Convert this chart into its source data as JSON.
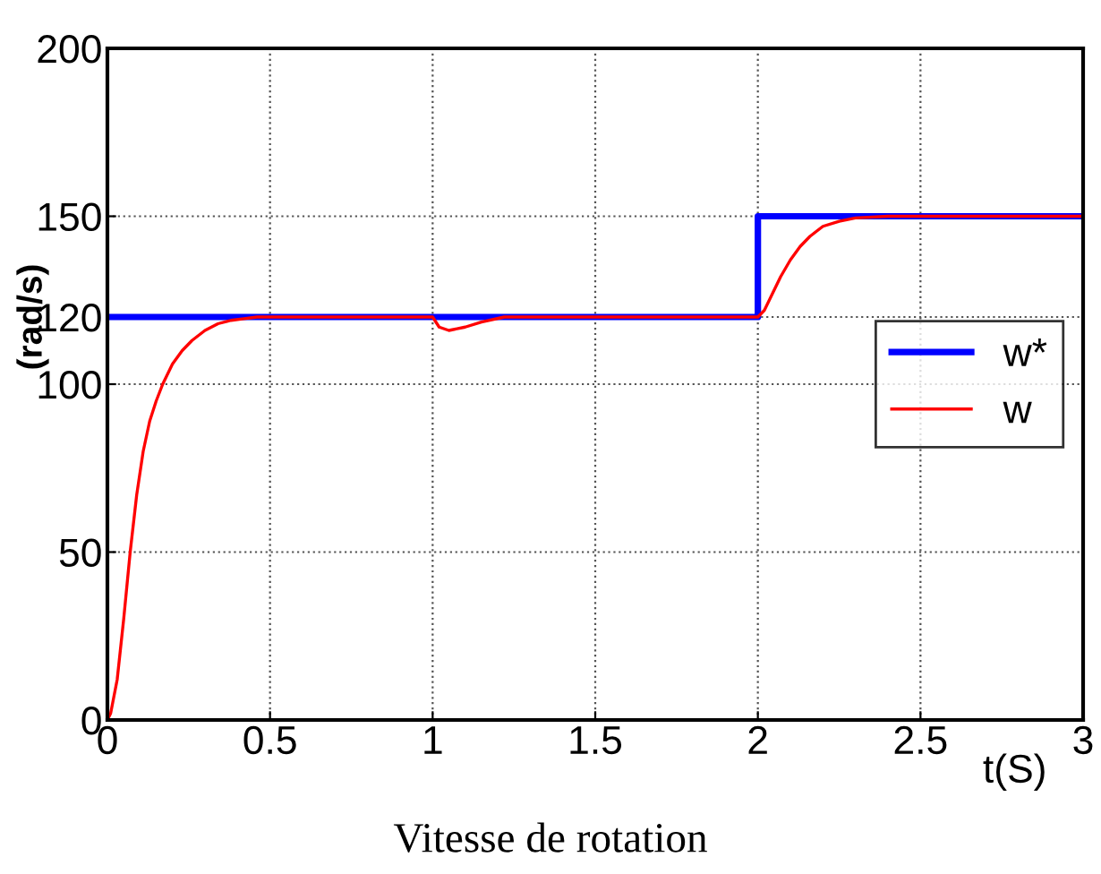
{
  "chart_data": {
    "type": "line",
    "title": "Vitesse de rotation",
    "xlabel": "t(S)",
    "ylabel": "(rad/s)",
    "xlim": [
      0,
      3
    ],
    "xticks": [
      0,
      0.5,
      1,
      1.5,
      2,
      2.5,
      3
    ],
    "ylim": [
      0,
      200
    ],
    "yticks": [
      0,
      50,
      100,
      120,
      150,
      200
    ],
    "grid": true,
    "legend": "right",
    "marker": "none",
    "line_style": "solid",
    "series": [
      {
        "name": "w*",
        "color": "#0000ff",
        "x": [
          0,
          2,
          2,
          3
        ],
        "values": [
          120,
          120,
          150,
          150
        ]
      },
      {
        "name": "w",
        "color": "#ff0000",
        "x": [
          0,
          0.01,
          0.03,
          0.05,
          0.07,
          0.09,
          0.11,
          0.13,
          0.15,
          0.17,
          0.2,
          0.23,
          0.26,
          0.3,
          0.34,
          0.38,
          0.42,
          0.46,
          1,
          1.02,
          1.05,
          1.1,
          1.15,
          1.22,
          2,
          2.02,
          2.04,
          2.07,
          2.1,
          2.13,
          2.16,
          2.2,
          2.25,
          2.3,
          2.4,
          3
        ],
        "values": [
          0,
          2,
          12,
          30,
          50,
          67,
          80,
          89,
          95,
          100,
          106,
          110,
          113,
          116,
          118,
          119,
          119.5,
          120,
          120,
          117,
          116,
          117,
          118.5,
          120,
          120,
          122,
          126,
          132,
          137,
          141,
          144,
          147,
          148.5,
          149.5,
          150,
          150
        ]
      }
    ]
  }
}
